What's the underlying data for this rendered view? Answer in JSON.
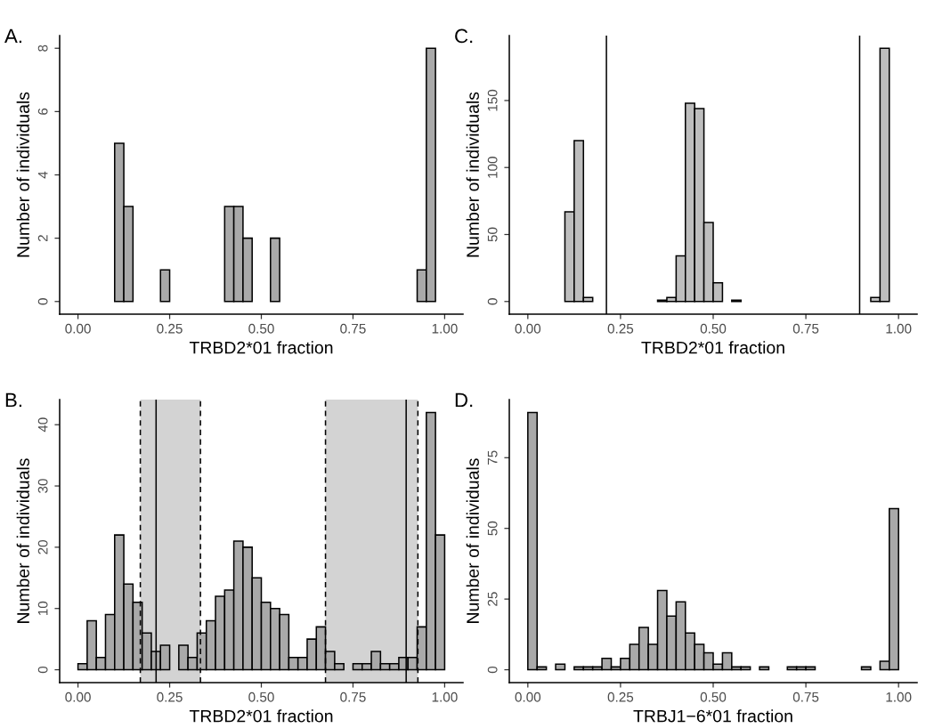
{
  "chart_data": [
    {
      "type": "histogram",
      "title": "A.",
      "xlabel": "TRBD2*01 fraction",
      "ylabel": "Number of individuals",
      "bins": [
        0,
        0.025,
        0.05,
        0.075,
        0.1,
        0.125,
        0.15,
        0.175,
        0.2,
        0.225,
        0.25,
        0.275,
        0.3,
        0.325,
        0.35,
        0.375,
        0.4,
        0.425,
        0.45,
        0.475,
        0.5,
        0.525,
        0.55,
        0.575,
        0.6,
        0.625,
        0.65,
        0.675,
        0.7,
        0.725,
        0.75,
        0.775,
        0.8,
        0.825,
        0.85,
        0.875,
        0.9,
        0.925,
        0.95,
        0.975,
        1
      ],
      "values": [
        0,
        0,
        0,
        0,
        5,
        3,
        0,
        0,
        0,
        1,
        0,
        0,
        0,
        0,
        0,
        0,
        3,
        3,
        2,
        0,
        0,
        2,
        0,
        0,
        0,
        0,
        0,
        0,
        0,
        0,
        0,
        0,
        0,
        0,
        0,
        0,
        0,
        1,
        8,
        0
      ],
      "color": "#a9a9a9",
      "xlim": [
        -0.05,
        1.05
      ],
      "ylim": [
        -0.4,
        8.4
      ],
      "xticks": [
        {
          "value": 0,
          "label": "0.00"
        },
        {
          "value": 0.25,
          "label": "0.25"
        },
        {
          "value": 0.5,
          "label": "0.50"
        },
        {
          "value": 0.75,
          "label": "0.75"
        },
        {
          "value": 1,
          "label": "1.00"
        }
      ],
      "yticks": [
        0,
        2,
        4,
        6,
        8
      ],
      "grid": false
    },
    {
      "type": "histogram",
      "title": "C.",
      "xlabel": "TRBD2*01 fraction",
      "ylabel": "Number of individuals",
      "bins": [
        0,
        0.025,
        0.05,
        0.075,
        0.1,
        0.125,
        0.15,
        0.175,
        0.2,
        0.225,
        0.25,
        0.275,
        0.3,
        0.325,
        0.35,
        0.375,
        0.4,
        0.425,
        0.45,
        0.475,
        0.5,
        0.525,
        0.55,
        0.575,
        0.6,
        0.625,
        0.65,
        0.675,
        0.7,
        0.725,
        0.75,
        0.775,
        0.8,
        0.825,
        0.85,
        0.875,
        0.9,
        0.925,
        0.95,
        0.975,
        1
      ],
      "values": [
        0,
        0,
        0,
        0,
        67,
        120,
        3,
        0,
        0,
        0,
        0,
        0,
        0,
        0,
        1,
        3,
        34,
        148,
        144,
        59,
        14,
        0,
        1,
        0,
        0,
        0,
        0,
        0,
        0,
        0,
        0,
        0,
        0,
        0,
        0,
        0,
        0,
        3,
        189,
        0
      ],
      "color": "#bebebe",
      "xlim": [
        -0.05,
        1.05
      ],
      "ylim": [
        -9.45,
        198.45
      ],
      "xticks": [
        {
          "value": 0,
          "label": "0.00"
        },
        {
          "value": 0.25,
          "label": "0.25"
        },
        {
          "value": 0.5,
          "label": "0.50"
        },
        {
          "value": 0.75,
          "label": "0.75"
        },
        {
          "value": 1,
          "label": "1.00"
        }
      ],
      "yticks": [
        0,
        50,
        100,
        150
      ],
      "grid": false,
      "ref_lines": [
        {
          "axis": "x",
          "value": 0.212,
          "color": "#000000",
          "line_style": "solid"
        },
        {
          "axis": "x",
          "value": 0.895,
          "color": "#000000",
          "line_style": "solid"
        }
      ]
    },
    {
      "type": "histogram",
      "title": "B.",
      "xlabel": "TRBD2*01 fraction",
      "ylabel": "Number of individuals",
      "bins": [
        0,
        0.025,
        0.05,
        0.075,
        0.1,
        0.125,
        0.15,
        0.175,
        0.2,
        0.225,
        0.25,
        0.275,
        0.3,
        0.325,
        0.35,
        0.375,
        0.4,
        0.425,
        0.45,
        0.475,
        0.5,
        0.525,
        0.55,
        0.575,
        0.6,
        0.625,
        0.65,
        0.675,
        0.7,
        0.725,
        0.75,
        0.775,
        0.8,
        0.825,
        0.85,
        0.875,
        0.9,
        0.925,
        0.95,
        0.975,
        1
      ],
      "values": [
        1,
        8,
        2,
        9,
        22,
        14,
        11,
        6,
        3,
        4,
        0,
        4,
        2,
        6,
        8,
        12,
        13,
        21,
        20,
        15,
        11,
        10,
        9,
        2,
        2,
        5,
        7,
        3,
        1,
        0,
        1,
        1,
        3,
        1,
        1,
        2,
        2,
        7,
        42,
        22
      ],
      "color": "#a9a9a9",
      "xlim": [
        -0.05,
        1.05
      ],
      "ylim": [
        -2.1,
        44.1
      ],
      "xticks": [
        {
          "value": 0,
          "label": "0.00"
        },
        {
          "value": 0.25,
          "label": "0.25"
        },
        {
          "value": 0.5,
          "label": "0.50"
        },
        {
          "value": 0.75,
          "label": "0.75"
        },
        {
          "value": 1,
          "label": "1.00"
        }
      ],
      "yticks": [
        0,
        10,
        20,
        30,
        40
      ],
      "grid": false,
      "bands": [
        {
          "axis": "x",
          "from": 0.17,
          "to": 0.334,
          "color": "#d3d3d3"
        },
        {
          "axis": "x",
          "from": 0.675,
          "to": 0.927,
          "color": "#d3d3d3"
        }
      ],
      "ref_lines": [
        {
          "axis": "x",
          "value": 0.213,
          "color": "#000000",
          "line_style": "solid"
        },
        {
          "axis": "x",
          "value": 0.895,
          "color": "#000000",
          "line_style": "solid"
        },
        {
          "axis": "x",
          "value": 0.17,
          "color": "#000000",
          "line_style": "dashed"
        },
        {
          "axis": "x",
          "value": 0.334,
          "color": "#000000",
          "line_style": "dashed"
        },
        {
          "axis": "x",
          "value": 0.675,
          "color": "#000000",
          "line_style": "dashed"
        },
        {
          "axis": "x",
          "value": 0.927,
          "color": "#000000",
          "line_style": "dashed"
        }
      ]
    },
    {
      "type": "histogram",
      "title": "D.",
      "xlabel": "TRBJ1−6*01 fraction",
      "ylabel": "Number of individuals",
      "bins": [
        0,
        0.025,
        0.05,
        0.075,
        0.1,
        0.125,
        0.15,
        0.175,
        0.2,
        0.225,
        0.25,
        0.275,
        0.3,
        0.325,
        0.35,
        0.375,
        0.4,
        0.425,
        0.45,
        0.475,
        0.5,
        0.525,
        0.55,
        0.575,
        0.6,
        0.625,
        0.65,
        0.675,
        0.7,
        0.725,
        0.75,
        0.775,
        0.8,
        0.825,
        0.85,
        0.875,
        0.9,
        0.925,
        0.95,
        0.975,
        1
      ],
      "values": [
        91,
        1,
        0,
        2,
        0,
        1,
        1,
        1,
        4,
        1,
        4,
        9,
        15,
        9,
        28,
        19,
        24,
        13,
        9,
        6,
        2,
        6,
        1,
        1,
        0,
        1,
        0,
        0,
        1,
        1,
        1,
        0,
        0,
        0,
        0,
        0,
        1,
        0,
        3,
        57
      ],
      "color": "#a9a9a9",
      "xlim": [
        -0.05,
        1.05
      ],
      "ylim": [
        -4.55,
        95.55
      ],
      "xticks": [
        {
          "value": 0,
          "label": "0.00"
        },
        {
          "value": 0.25,
          "label": "0.25"
        },
        {
          "value": 0.5,
          "label": "0.50"
        },
        {
          "value": 0.75,
          "label": "0.75"
        },
        {
          "value": 1,
          "label": "1.00"
        }
      ],
      "yticks": [
        0,
        25,
        50,
        75
      ],
      "grid": false
    }
  ]
}
